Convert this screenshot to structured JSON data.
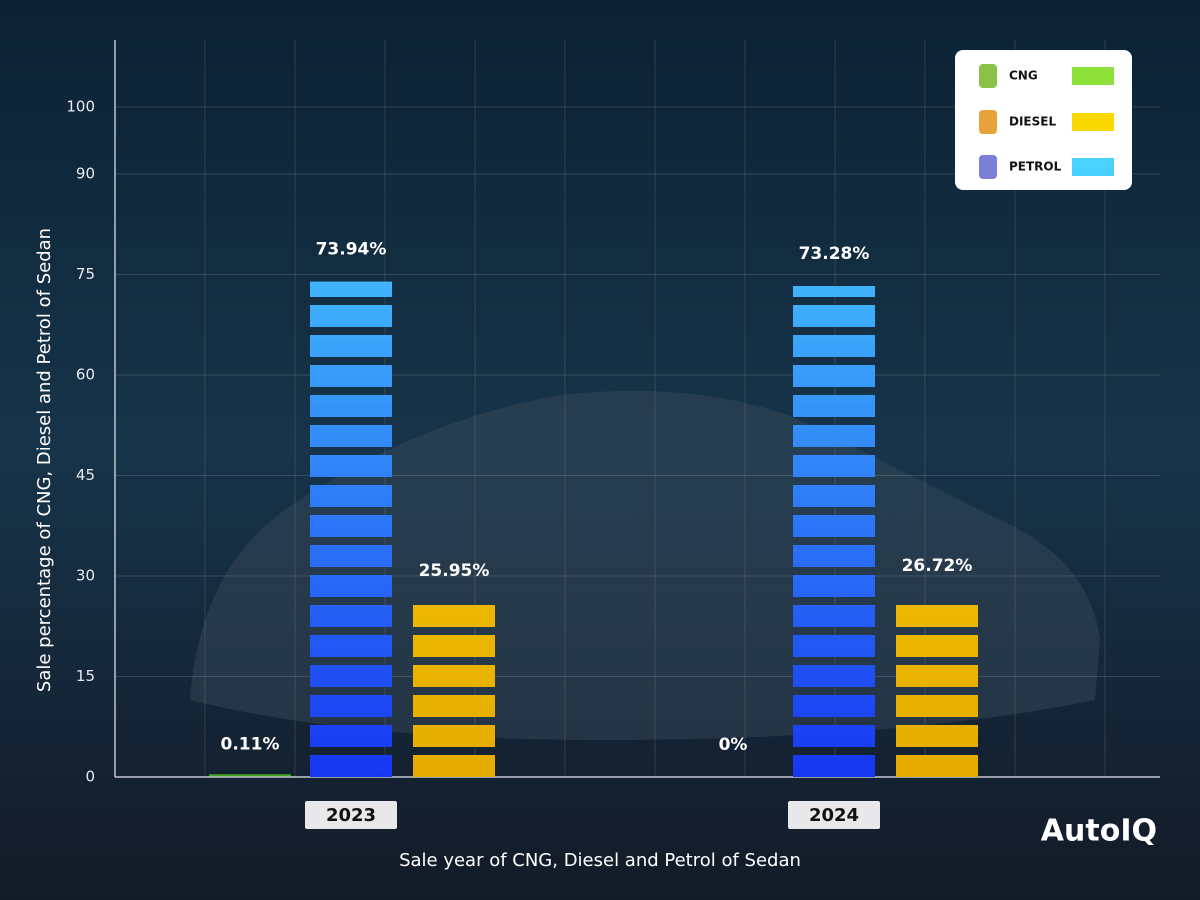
{
  "chart_data": {
    "type": "bar",
    "categories": [
      "2023",
      "2024"
    ],
    "series": [
      {
        "name": "CNG",
        "gradient": [
          "#3fa81a",
          "#8ee03a"
        ],
        "values": [
          0.11,
          0
        ],
        "value_labels": [
          "0.11%",
          "0%"
        ]
      },
      {
        "name": "PETROL",
        "gradient": [
          "#1736f2",
          "#4fe2ff"
        ],
        "values": [
          73.94,
          73.28
        ],
        "value_labels": [
          "73.94%",
          "73.28%"
        ]
      },
      {
        "name": "DIESEL",
        "gradient": [
          "#e6ac00",
          "#fad900"
        ],
        "values": [
          25.95,
          26.72
        ],
        "value_labels": [
          "25.95%",
          "26.72%"
        ]
      }
    ],
    "legend_order": [
      "CNG",
      "DIESEL",
      "PETROL"
    ],
    "legend": "top-right",
    "ylim": [
      0,
      110
    ],
    "yticks": [
      0,
      15,
      30,
      45,
      60,
      75,
      90,
      100
    ],
    "grid": true,
    "y_label": "Sale percentage of CNG, Diesel and Petrol of Sedan",
    "x_label": "Sale year of CNG, Diesel and Petrol of Sedan",
    "brand": "AutoIQ"
  }
}
